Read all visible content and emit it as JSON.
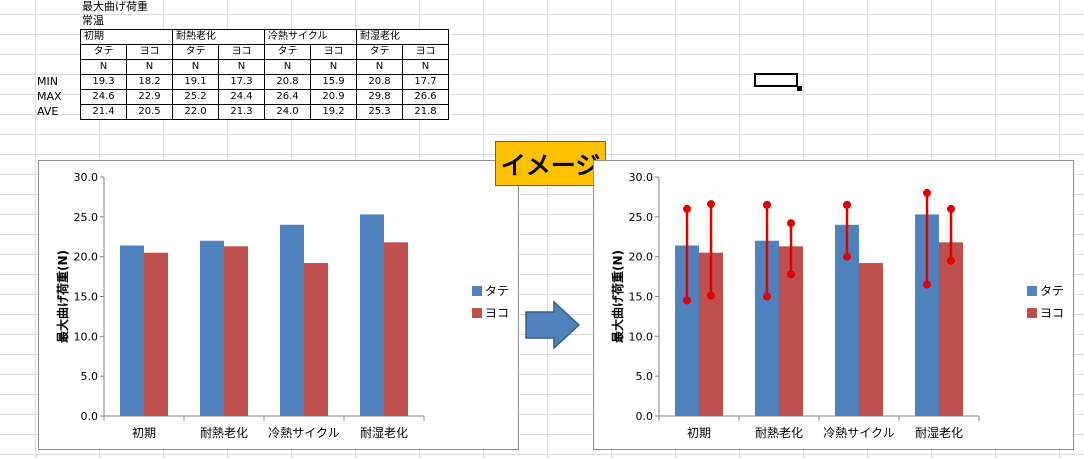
{
  "sheet": {
    "title": "最大曲げ荷重",
    "condition": "常温",
    "groups": [
      "初期",
      "耐熱老化",
      "冷熱サイクル",
      "耐湿老化"
    ],
    "directions": [
      "タテ",
      "ヨコ"
    ],
    "unit": "N",
    "row_labels": [
      "MIN",
      "MAX",
      "AVE"
    ],
    "rows": [
      [
        "19.3",
        "18.2",
        "19.1",
        "17.3",
        "20.8",
        "15.9",
        "20.8",
        "17.7"
      ],
      [
        "24.6",
        "22.9",
        "25.2",
        "24.4",
        "26.4",
        "20.9",
        "29.8",
        "26.6"
      ],
      [
        "21.4",
        "20.5",
        "22.0",
        "21.3",
        "24.0",
        "19.2",
        "25.3",
        "21.8"
      ]
    ]
  },
  "badge": {
    "label": "イメージ"
  },
  "colors": {
    "tate": "#4f81bd",
    "yoko": "#c0504d",
    "error_bar": "#e00000",
    "badge": "#ffc000",
    "arrow": "#4f81bd"
  },
  "chart_data": [
    {
      "type": "bar",
      "title": "",
      "xlabel": "",
      "ylabel": "最大曲げ荷重(N)",
      "ylim": [
        0,
        30
      ],
      "y_ticks": [
        "0.0",
        "5.0",
        "10.0",
        "15.0",
        "20.0",
        "25.0",
        "30.0"
      ],
      "categories": [
        "初期",
        "耐熱老化",
        "冷熱サイクル",
        "耐湿老化"
      ],
      "series": [
        {
          "name": "タテ",
          "values": [
            21.4,
            22.0,
            24.0,
            25.3
          ]
        },
        {
          "name": "ヨコ",
          "values": [
            20.5,
            21.3,
            19.2,
            21.8
          ]
        }
      ],
      "legend": "right",
      "grid": false
    },
    {
      "type": "bar",
      "title": "",
      "xlabel": "",
      "ylabel": "最大曲げ荷重(N)",
      "ylim": [
        0,
        30
      ],
      "y_ticks": [
        "0.0",
        "5.0",
        "10.0",
        "15.0",
        "20.0",
        "25.0",
        "30.0"
      ],
      "categories": [
        "初期",
        "耐熱老化",
        "冷熱サイクル",
        "耐湿老化"
      ],
      "series": [
        {
          "name": "タテ",
          "values": [
            21.4,
            22.0,
            24.0,
            25.3
          ]
        },
        {
          "name": "ヨコ",
          "values": [
            20.5,
            21.3,
            19.2,
            21.8
          ]
        }
      ],
      "range_markers": [
        {
          "category": "初期",
          "series": "タテ",
          "low": 14.5,
          "high": 26.0
        },
        {
          "category": "初期",
          "series": "ヨコ",
          "low": 15.1,
          "high": 26.6
        },
        {
          "category": "耐熱老化",
          "series": "タテ",
          "low": 15.0,
          "high": 26.5
        },
        {
          "category": "耐熱老化",
          "series": "ヨコ",
          "low": 17.8,
          "high": 24.2
        },
        {
          "category": "冷熱サイクル",
          "series": "タテ",
          "low": 20.0,
          "high": 26.5
        },
        {
          "category": "耐湿老化",
          "series": "タテ",
          "low": 16.5,
          "high": 28.0
        },
        {
          "category": "耐湿老化",
          "series": "ヨコ",
          "low": 19.5,
          "high": 26.0
        }
      ],
      "legend": "right",
      "grid": false
    }
  ]
}
